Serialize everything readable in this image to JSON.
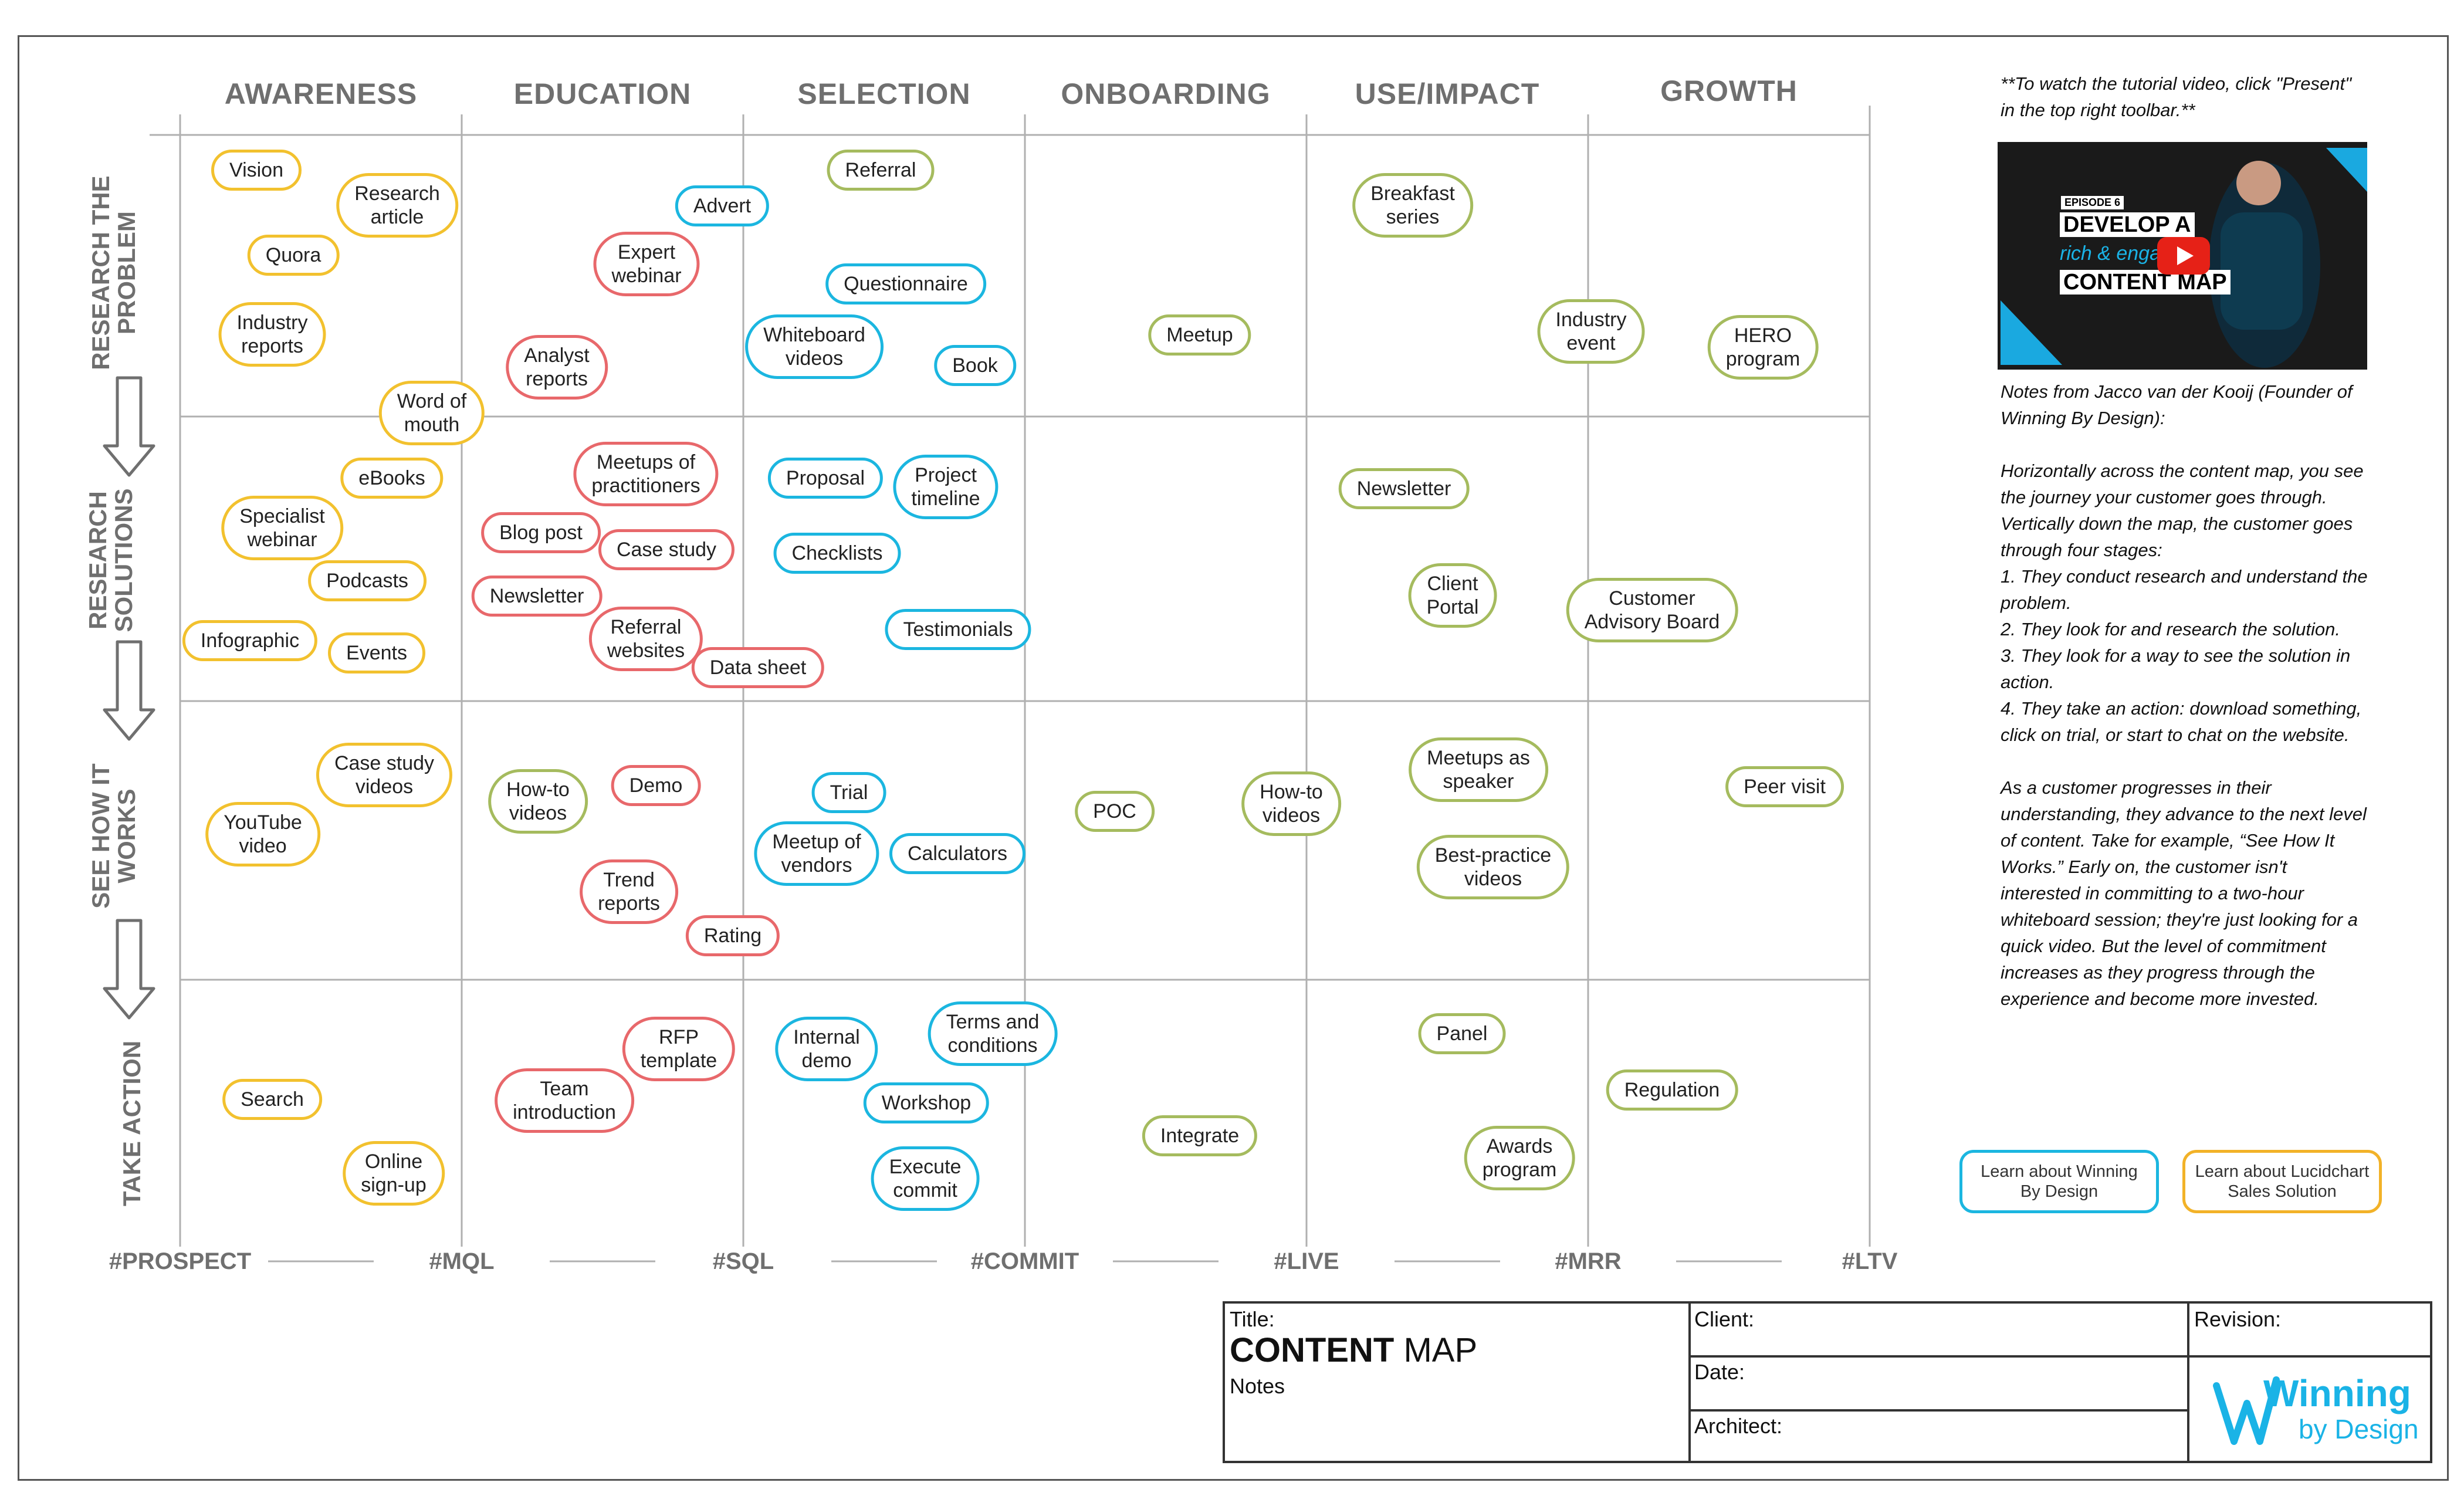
{
  "stages": [
    "AWARENESS",
    "EDUCATION",
    "SELECTION",
    "ONBOARDING",
    "USE/IMPACT",
    "GROWTH"
  ],
  "rows": [
    {
      "l1": "RESEARCH THE",
      "l2": "PROBLEM"
    },
    {
      "l1": "RESEARCH",
      "l2": "SOLUTIONS"
    },
    {
      "l1": "SEE HOW IT",
      "l2": "WORKS"
    },
    {
      "l1": "TAKE ACTION",
      "l2": ""
    }
  ],
  "milestones": [
    "#PROSPECT",
    "#MQL",
    "#SQL",
    "#COMMIT",
    "#LIVE",
    "#MRR",
    "#LTV"
  ],
  "colors": {
    "yellow": "#f2c12e",
    "red": "#e8686b",
    "blue": "#1bb6e0",
    "green": "#a5bb5e",
    "label": "#6f6f6f",
    "grid": "#b0b0b0"
  },
  "nodes": [
    {
      "text": "Vision",
      "color": "yellow"
    },
    {
      "text": "Research\narticle",
      "color": "yellow"
    },
    {
      "text": "Quora",
      "color": "yellow"
    },
    {
      "text": "Industry\nreports",
      "color": "yellow"
    },
    {
      "text": "Word of\nmouth",
      "color": "yellow"
    },
    {
      "text": "eBooks",
      "color": "yellow"
    },
    {
      "text": "Specialist\nwebinar",
      "color": "yellow"
    },
    {
      "text": "Podcasts",
      "color": "yellow"
    },
    {
      "text": "Infographic",
      "color": "yellow"
    },
    {
      "text": "Events",
      "color": "yellow"
    },
    {
      "text": "Case study\nvideos",
      "color": "yellow"
    },
    {
      "text": "YouTube\nvideo",
      "color": "yellow"
    },
    {
      "text": "Search",
      "color": "yellow"
    },
    {
      "text": "Online\nsign-up",
      "color": "yellow"
    },
    {
      "text": "Expert\nwebinar",
      "color": "red"
    },
    {
      "text": "Analyst\nreports",
      "color": "red"
    },
    {
      "text": "Meetups of\npractitioners",
      "color": "red"
    },
    {
      "text": "Blog post",
      "color": "red"
    },
    {
      "text": "Case study",
      "color": "red"
    },
    {
      "text": "Newsletter",
      "color": "red"
    },
    {
      "text": "Referral\nwebsites",
      "color": "red"
    },
    {
      "text": "Data sheet",
      "color": "red"
    },
    {
      "text": "Demo",
      "color": "red"
    },
    {
      "text": "How-to\nvideos",
      "color": "green"
    },
    {
      "text": "Trend\nreports",
      "color": "red"
    },
    {
      "text": "Rating",
      "color": "red"
    },
    {
      "text": "RFP\ntemplate",
      "color": "red"
    },
    {
      "text": "Team\nintroduction",
      "color": "red"
    },
    {
      "text": "Advert",
      "color": "blue"
    },
    {
      "text": "Referral",
      "color": "green"
    },
    {
      "text": "Questionnaire",
      "color": "blue"
    },
    {
      "text": "Whiteboard\nvideos",
      "color": "blue"
    },
    {
      "text": "Book",
      "color": "blue"
    },
    {
      "text": "Proposal",
      "color": "blue"
    },
    {
      "text": "Project\ntimeline",
      "color": "blue"
    },
    {
      "text": "Checklists",
      "color": "blue"
    },
    {
      "text": "Testimonials",
      "color": "blue"
    },
    {
      "text": "Trial",
      "color": "blue"
    },
    {
      "text": "Meetup of\nvendors",
      "color": "blue"
    },
    {
      "text": "Calculators",
      "color": "blue"
    },
    {
      "text": "Internal\ndemo",
      "color": "blue"
    },
    {
      "text": "Terms and\nconditions",
      "color": "blue"
    },
    {
      "text": "Workshop",
      "color": "blue"
    },
    {
      "text": "Execute\ncommit",
      "color": "blue"
    },
    {
      "text": "Meetup",
      "color": "green"
    },
    {
      "text": "POC",
      "color": "green"
    },
    {
      "text": "How-to\nvideos",
      "color": "green"
    },
    {
      "text": "Integrate",
      "color": "green"
    },
    {
      "text": "Breakfast\nseries",
      "color": "green"
    },
    {
      "text": "Newsletter",
      "color": "green"
    },
    {
      "text": "Client\nPortal",
      "color": "green"
    },
    {
      "text": "Meetups as\nspeaker",
      "color": "green"
    },
    {
      "text": "Best-practice\nvideos",
      "color": "green"
    },
    {
      "text": "Panel",
      "color": "green"
    },
    {
      "text": "Awards\nprogram",
      "color": "green"
    },
    {
      "text": "Industry\nevent",
      "color": "green"
    },
    {
      "text": "HERO\nprogram",
      "color": "green"
    },
    {
      "text": "Customer\nAdvisory Board",
      "color": "green"
    },
    {
      "text": "Peer visit",
      "color": "green"
    },
    {
      "text": "Regulation",
      "color": "green"
    }
  ],
  "sidebar": {
    "tutorial": "**To watch the tutorial video, click \"Present\" in the top right toolbar.**",
    "video": {
      "episode": "EPISODE 6",
      "line1": "DEVELOP A",
      "line2": "rich & engaging",
      "line3": "CONTENT MAP"
    },
    "notes_intro": "Notes from Jacco van der Kooij (Founder of Winning By Design):",
    "notes_body": "Horizontally across the content map, you see the journey your customer goes through. Vertically down the map, the customer goes through four stages:",
    "steps": [
      "1. They conduct research and understand the problem.",
      "2. They look for and research the solution.",
      "3. They look for a way to see the solution in action.",
      "4. They take an action: download something, click on trial, or start to chat on the website."
    ],
    "notes_outro": "As a customer progresses in their understanding, they advance to the next level of content. Take for example, “See How It Works.”  Early on, the customer isn't interested in committing to a two-hour whiteboard session; they're just looking for a quick video. But the level of commitment increases as they progress through the experience and become more invested.",
    "btn_wbd": "Learn about Winning By Design",
    "btn_lucid": "Learn about Lucidchart Sales Solution"
  },
  "titleblock": {
    "title_label": "Title:",
    "title_bold": "CONTENT",
    "title_rest": " MAP",
    "notes_label": "Notes",
    "client_label": "Client:",
    "date_label": "Date:",
    "architect_label": "Architect:",
    "revision_label": "Revision:",
    "logo_main": "Winning",
    "logo_sub": "by Design"
  }
}
